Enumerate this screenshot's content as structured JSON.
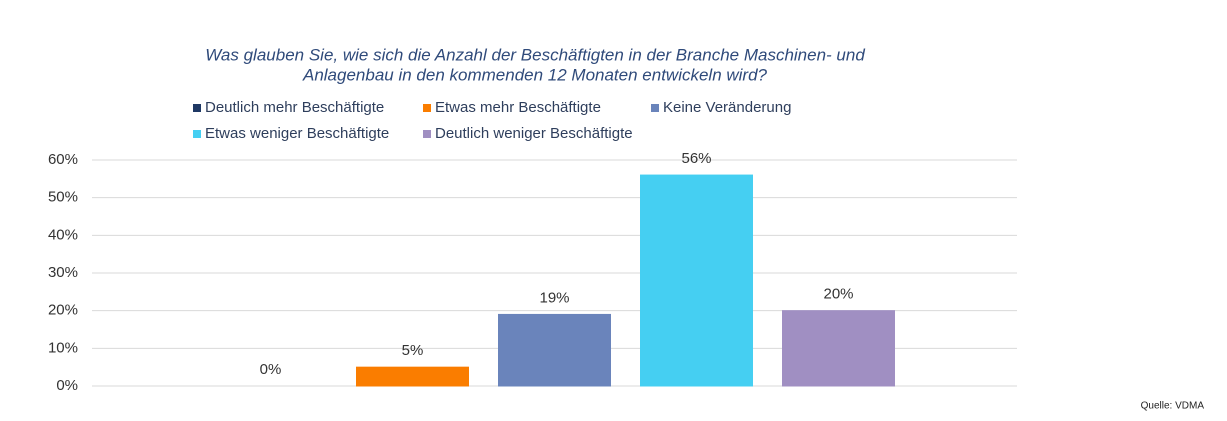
{
  "chart_data": {
    "type": "bar",
    "title": [
      "Was glauben Sie, wie sich die Anzahl der Beschäftigten in der Branche Maschinen- und",
      "Anlagenbau in den kommenden 12 Monaten entwickeln wird?"
    ],
    "series": [
      {
        "name": "Deutlich mehr Beschäftigte",
        "color": "#1f3864",
        "values": [
          0
        ],
        "value_labels": [
          "0%"
        ]
      },
      {
        "name": "Etwas mehr Beschäftigte",
        "color": "#fa7d00",
        "values": [
          5
        ],
        "value_labels": [
          "5%"
        ]
      },
      {
        "name": "Keine Veränderung",
        "color": "#6a84bb",
        "values": [
          19
        ],
        "value_labels": [
          "19%"
        ]
      },
      {
        "name": "Etwas weniger Beschäftigte",
        "color": "#45cff2",
        "values": [
          56
        ],
        "value_labels": [
          "56%"
        ]
      },
      {
        "name": "Deutlich weniger Beschäftigte",
        "color": "#a08fc2",
        "values": [
          20
        ],
        "value_labels": [
          "20%"
        ]
      }
    ],
    "ylim": [
      0,
      60
    ],
    "yticks": [
      {
        "value": 0,
        "label": "0%"
      },
      {
        "value": 10,
        "label": "10%"
      },
      {
        "value": 20,
        "label": "20%"
      },
      {
        "value": 30,
        "label": "30%"
      },
      {
        "value": 40,
        "label": "40%"
      },
      {
        "value": 50,
        "label": "50%"
      },
      {
        "value": 60,
        "label": "60%"
      }
    ],
    "grid": true,
    "source": "Quelle: VDMA"
  }
}
